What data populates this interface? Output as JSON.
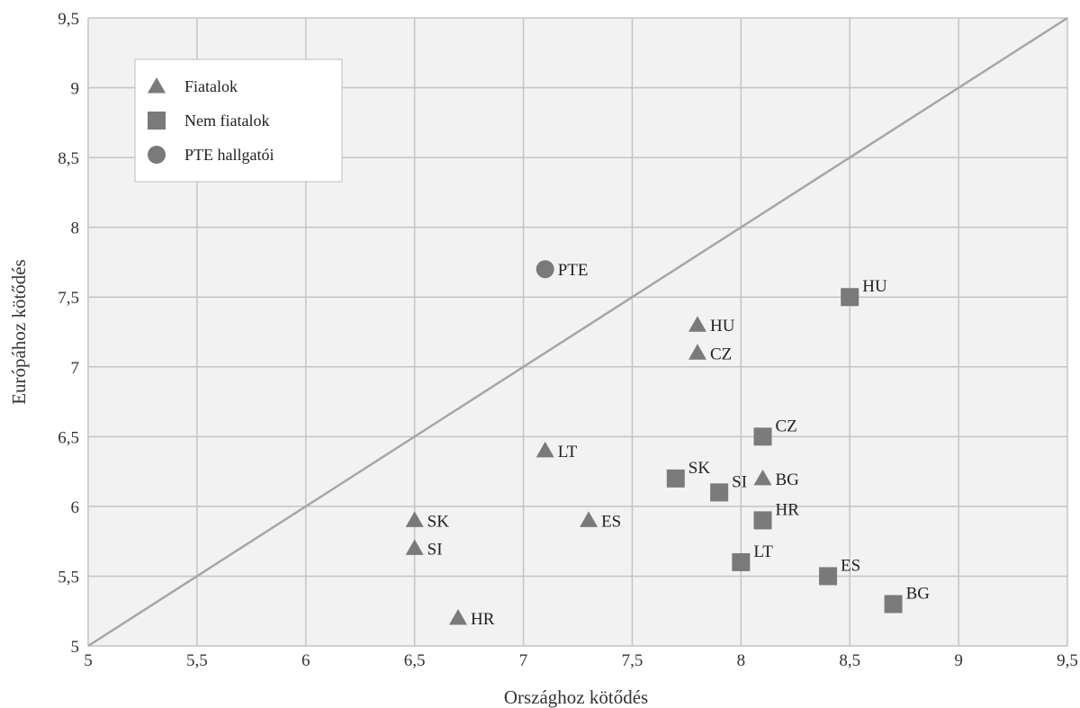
{
  "chart_data": {
    "type": "scatter",
    "title": "",
    "xlabel": "Országhoz kötődés",
    "ylabel": "Európához kötődés",
    "xlim": [
      5,
      9.5
    ],
    "ylim": [
      5,
      9.5
    ],
    "xticks": [
      "5",
      "5,5",
      "6",
      "6,5",
      "7",
      "7,5",
      "8",
      "8,5",
      "9",
      "9,5"
    ],
    "yticks": [
      "5",
      "5,5",
      "6",
      "6,5",
      "7",
      "7,5",
      "8",
      "8,5",
      "9",
      "9,5"
    ],
    "grid": true,
    "legend_position": "top-left",
    "reference_line": {
      "from": [
        5,
        5
      ],
      "to": [
        9.5,
        9.5
      ]
    },
    "colors": {
      "marker": "#7a7a7a",
      "reference_line": "#a6a6a6",
      "grid": "#c4c4c4",
      "plot_background": "#f2f2f2"
    },
    "series": [
      {
        "name": "Fiatalok",
        "marker": "triangle",
        "points": [
          {
            "label": "HU",
            "x": 7.8,
            "y": 7.3
          },
          {
            "label": "CZ",
            "x": 7.8,
            "y": 7.1
          },
          {
            "label": "LT",
            "x": 7.1,
            "y": 6.4
          },
          {
            "label": "BG",
            "x": 8.1,
            "y": 6.2
          },
          {
            "label": "SK",
            "x": 6.5,
            "y": 5.9
          },
          {
            "label": "ES",
            "x": 7.3,
            "y": 5.9
          },
          {
            "label": "SI",
            "x": 6.5,
            "y": 5.7
          },
          {
            "label": "HR",
            "x": 6.7,
            "y": 5.2
          }
        ]
      },
      {
        "name": "Nem fiatalok",
        "marker": "square",
        "points": [
          {
            "label": "HU",
            "x": 8.5,
            "y": 7.5
          },
          {
            "label": "CZ",
            "x": 8.1,
            "y": 6.5
          },
          {
            "label": "SK",
            "x": 7.7,
            "y": 6.2
          },
          {
            "label": "SI",
            "x": 7.9,
            "y": 6.1
          },
          {
            "label": "HR",
            "x": 8.1,
            "y": 5.9
          },
          {
            "label": "LT",
            "x": 8.0,
            "y": 5.6
          },
          {
            "label": "ES",
            "x": 8.4,
            "y": 5.5
          },
          {
            "label": "BG",
            "x": 8.7,
            "y": 5.3
          }
        ]
      },
      {
        "name": "PTE hallgatói",
        "marker": "circle",
        "points": [
          {
            "label": "PTE",
            "x": 7.1,
            "y": 7.7
          }
        ]
      }
    ]
  }
}
